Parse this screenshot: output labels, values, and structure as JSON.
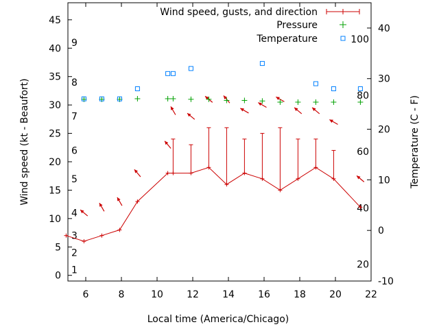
{
  "chart_data": {
    "type": "line",
    "title": "",
    "xlabel": "Local time (America/Chicago)",
    "ylabel": "Wind speed (kt - Beaufort)",
    "y2label": "Temperature (C - F)",
    "xlim": [
      5,
      22
    ],
    "ylim": [
      -1,
      48
    ],
    "y2lim": [
      -10,
      45
    ],
    "x_ticks": [
      6,
      8,
      10,
      12,
      14,
      16,
      18,
      20,
      22
    ],
    "y_ticks": [
      0,
      5,
      10,
      15,
      20,
      25,
      30,
      35,
      40,
      45
    ],
    "y2_ticks": [
      -10,
      0,
      10,
      20,
      30,
      40
    ],
    "beaufort_labels": [
      {
        "label": "1",
        "kt": 1
      },
      {
        "label": "2",
        "kt": 4
      },
      {
        "label": "3",
        "kt": 7
      },
      {
        "label": "4",
        "kt": 11
      },
      {
        "label": "5",
        "kt": 17
      },
      {
        "label": "6",
        "kt": 22
      },
      {
        "label": "7",
        "kt": 28
      },
      {
        "label": "8",
        "kt": 34
      },
      {
        "label": "9",
        "kt": 41
      }
    ],
    "fahrenheit_labels": [
      {
        "label": "20",
        "celsius": -6.7
      },
      {
        "label": "40",
        "celsius": 4.4
      },
      {
        "label": "60",
        "celsius": 15.6
      },
      {
        "label": "80",
        "celsius": 26.7
      },
      {
        "label": "100",
        "celsius": 37.8
      }
    ],
    "legend_position": "top-right",
    "series": [
      {
        "name": "Wind speed, gusts, and direction",
        "color": "#cc0000",
        "x": [
          4.9,
          5.9,
          6.9,
          7.9,
          8.9,
          10.6,
          10.9,
          11.9,
          12.9,
          13.9,
          14.9,
          15.9,
          16.9,
          17.9,
          18.9,
          19.9,
          21.4
        ],
        "speed": [
          7,
          6,
          7,
          8,
          13,
          18,
          18,
          18,
          19,
          16,
          18,
          17,
          15,
          17,
          19,
          17,
          12
        ],
        "gust": [
          7,
          6,
          7,
          8,
          13,
          18,
          24,
          23,
          26,
          26,
          24,
          25,
          26,
          24,
          24,
          22,
          12
        ],
        "direction_deg": [
          null,
          310,
          330,
          330,
          320,
          320,
          330,
          310,
          310,
          320,
          300,
          300,
          300,
          310,
          310,
          300,
          310
        ]
      },
      {
        "name": "Pressure",
        "color": "#00a000",
        "x": [
          5.9,
          6.9,
          7.9,
          8.9,
          10.6,
          10.9,
          11.9,
          12.9,
          13.9,
          14.9,
          15.9,
          16.9,
          17.9,
          18.9,
          19.9,
          21.4
        ],
        "values": [
          31,
          31,
          31,
          31.1,
          31.1,
          31.1,
          31,
          31,
          30.8,
          30.8,
          30.7,
          30.5,
          30.5,
          30.5,
          30.5,
          30.5
        ]
      },
      {
        "name": "Temperature",
        "color": "#0080ff",
        "x": [
          5.9,
          6.9,
          7.9,
          8.9,
          10.6,
          10.9,
          11.9,
          15.9,
          18.9,
          19.9,
          21.4
        ],
        "values": [
          26,
          26,
          26,
          28,
          31,
          31,
          32,
          33,
          29,
          28,
          28
        ]
      }
    ]
  }
}
